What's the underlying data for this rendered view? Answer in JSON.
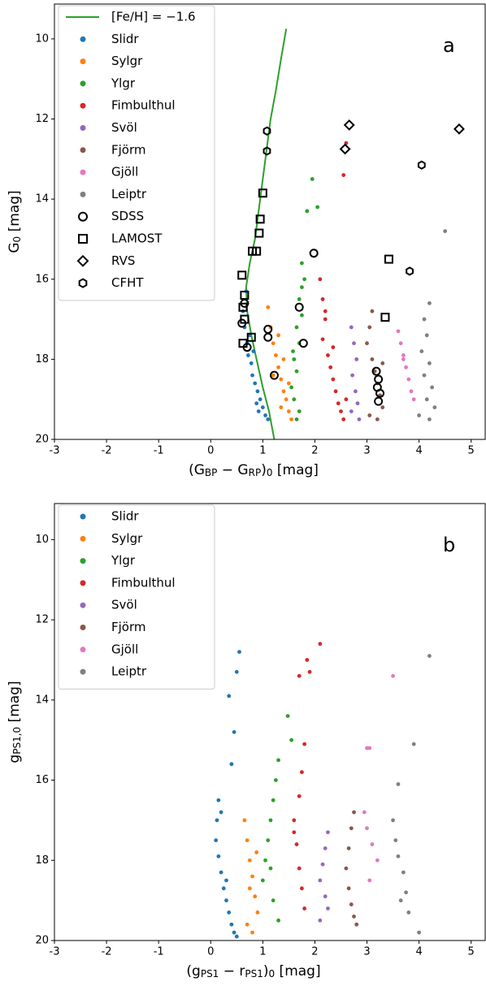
{
  "chart_data": [
    {
      "type": "scatter",
      "panel_label": "a",
      "xlabel": [
        "(G",
        "BP",
        " − G",
        "RP",
        ")",
        "0",
        " [mag]"
      ],
      "ylabel": [
        "G",
        "0",
        " [mag]"
      ],
      "xlim": [
        -3,
        5.27
      ],
      "ylim": [
        20,
        9.13
      ],
      "xticks": [
        -3,
        -2,
        -1,
        0,
        1,
        2,
        3,
        4,
        5
      ],
      "yticks": [
        10,
        12,
        14,
        16,
        18,
        20
      ],
      "legend": "upper left",
      "series": [
        {
          "name": "[Fe/H] = −1.6",
          "color": "#2ca02c",
          "marker": "line",
          "x": [
            1.45,
            1.35,
            1.25,
            1.15,
            1.05,
            0.95,
            0.85,
            0.75,
            0.68,
            0.7,
            0.78,
            0.88,
            1.0,
            1.12,
            1.22
          ],
          "values": [
            9.75,
            10.5,
            11.3,
            12,
            13,
            14,
            15,
            15.6,
            16.2,
            16.8,
            17.4,
            18,
            18.7,
            19.3,
            20
          ]
        },
        {
          "name": "Slidr",
          "color": "#1f77b4",
          "marker": "dot",
          "x": [
            0.62,
            0.65,
            0.68,
            0.7,
            0.72,
            0.75,
            0.78,
            0.8,
            0.85,
            0.88,
            0.9,
            0.95,
            1.0,
            1.05,
            1.1,
            0.82,
            0.92
          ],
          "values": [
            16.8,
            17.2,
            16.3,
            17.6,
            17.9,
            17.4,
            18.1,
            18.4,
            18.6,
            19.1,
            18.8,
            19.0,
            19.2,
            19.4,
            19.5,
            17.8,
            19.3
          ]
        },
        {
          "name": "Sylgr",
          "color": "#ff7f0e",
          "marker": "dot",
          "x": [
            1.1,
            1.15,
            1.2,
            1.25,
            1.3,
            1.35,
            1.4,
            1.45,
            1.5,
            1.55,
            1.3,
            1.4,
            1.2,
            1.35,
            1.5
          ],
          "values": [
            16.7,
            17.2,
            17.6,
            17.9,
            18.2,
            18.5,
            18.8,
            19.0,
            19.3,
            19.5,
            17.4,
            18.0,
            18.4,
            19.2,
            18.6
          ]
        },
        {
          "name": "Ylgr",
          "color": "#2ca02c",
          "marker": "dot",
          "x": [
            1.85,
            1.95,
            2.05,
            1.75,
            1.8,
            1.7,
            1.75,
            1.65,
            1.7,
            1.6,
            1.65,
            1.55,
            1.6,
            1.7,
            1.65,
            1.58,
            1.75
          ],
          "values": [
            14.3,
            13.5,
            14.2,
            15.6,
            16.0,
            16.5,
            16.9,
            17.2,
            17.6,
            18.0,
            18.3,
            18.7,
            19.0,
            19.3,
            19.5,
            17.8,
            16.2
          ]
        },
        {
          "name": "Fimbulthul",
          "color": "#d62728",
          "marker": "dot",
          "x": [
            2.55,
            2.6,
            2.1,
            2.15,
            2.2,
            2.15,
            2.25,
            2.3,
            2.35,
            2.4,
            2.45,
            2.5,
            2.55,
            2.2,
            2.35,
            2.6
          ],
          "values": [
            13.4,
            12.6,
            16.0,
            16.5,
            17.0,
            17.5,
            17.9,
            18.2,
            18.5,
            18.8,
            19.1,
            19.3,
            19.5,
            16.8,
            17.7,
            19.0
          ]
        },
        {
          "name": "Svöl",
          "color": "#9467bd",
          "marker": "dot",
          "x": [
            2.7,
            2.75,
            2.8,
            2.72,
            2.78,
            2.82,
            2.7,
            2.85
          ],
          "values": [
            17.2,
            17.6,
            18.0,
            18.4,
            18.8,
            19.1,
            19.3,
            19.5
          ]
        },
        {
          "name": "Fjörm",
          "color": "#8c564b",
          "marker": "dot",
          "x": [
            3.1,
            3.05,
            3.0,
            3.1,
            3.15,
            3.2,
            3.25,
            3.3,
            3.05,
            3.2,
            3.3
          ],
          "values": [
            16.8,
            17.2,
            17.6,
            18.0,
            18.3,
            18.6,
            18.9,
            19.2,
            19.4,
            19.5,
            18.1
          ]
        },
        {
          "name": "Gjöll",
          "color": "#e377c2",
          "marker": "dot",
          "x": [
            3.6,
            3.65,
            3.7,
            3.75,
            3.8,
            3.85,
            3.9,
            3.7
          ],
          "values": [
            17.3,
            17.6,
            17.9,
            18.2,
            18.5,
            18.8,
            19.0,
            18.0
          ]
        },
        {
          "name": "Leiptr",
          "color": "#7f7f7f",
          "marker": "dot",
          "x": [
            4.5,
            4.2,
            4.1,
            4.15,
            4.05,
            4.2,
            4.1,
            4.25,
            4.15,
            4.3,
            4.0,
            4.2
          ],
          "values": [
            14.8,
            16.6,
            17.0,
            17.4,
            17.8,
            18.1,
            18.4,
            18.7,
            19.0,
            19.2,
            19.4,
            19.5
          ]
        },
        {
          "name": "SDSS",
          "color": "#000000",
          "marker": "circle",
          "x": [
            1.1,
            1.1,
            1.22,
            1.7,
            1.78,
            1.98,
            3.18,
            3.22,
            3.2,
            3.25,
            3.22,
            0.6,
            0.65,
            0.7
          ],
          "values": [
            17.25,
            17.45,
            18.4,
            16.7,
            17.6,
            15.35,
            18.3,
            18.5,
            18.7,
            18.85,
            19.05,
            17.1,
            16.6,
            17.7
          ]
        },
        {
          "name": "LAMOST",
          "color": "#000000",
          "marker": "square",
          "x": [
            0.6,
            0.62,
            0.65,
            0.78,
            0.8,
            0.88,
            0.93,
            0.95,
            1.0,
            0.65,
            0.62,
            3.35,
            3.42
          ],
          "values": [
            15.9,
            16.7,
            16.4,
            17.45,
            15.3,
            15.3,
            14.85,
            14.5,
            13.85,
            17.0,
            17.6,
            16.95,
            15.5
          ]
        },
        {
          "name": "RVS",
          "color": "#000000",
          "marker": "diamond",
          "x": [
            2.66,
            2.58,
            4.77
          ],
          "values": [
            12.15,
            12.75,
            12.25
          ]
        },
        {
          "name": "CFHT",
          "color": "#000000",
          "marker": "hexagon",
          "x": [
            1.08,
            1.08,
            3.82,
            4.05
          ],
          "values": [
            12.3,
            12.8,
            15.8,
            13.15
          ]
        }
      ]
    },
    {
      "type": "scatter",
      "panel_label": "b",
      "xlabel": [
        "(g",
        "PS1",
        " − r",
        "PS1",
        ")",
        "0",
        " [mag]"
      ],
      "ylabel": [
        "g",
        "PS1,0",
        " [mag]"
      ],
      "xlim": [
        -3,
        5.27
      ],
      "ylim": [
        20,
        9.1
      ],
      "xticks": [
        -3,
        -2,
        -1,
        0,
        1,
        2,
        3,
        4,
        5
      ],
      "yticks": [
        10,
        12,
        14,
        16,
        18,
        20
      ],
      "legend": "upper left",
      "series": [
        {
          "name": "Slidr",
          "color": "#1f77b4",
          "marker": "dot",
          "x": [
            0.55,
            0.5,
            0.35,
            0.45,
            0.4,
            0.15,
            0.12,
            0.1,
            0.15,
            0.2,
            0.25,
            0.3,
            0.35,
            0.4,
            0.45,
            0.5,
            0.3,
            0.2
          ],
          "values": [
            12.8,
            13.3,
            13.9,
            14.8,
            15.6,
            16.5,
            17.0,
            17.5,
            17.9,
            18.3,
            18.7,
            19.0,
            19.3,
            19.6,
            19.8,
            19.9,
            18.5,
            16.8
          ]
        },
        {
          "name": "Sylgr",
          "color": "#ff7f0e",
          "marker": "dot",
          "x": [
            0.65,
            0.7,
            0.75,
            0.8,
            0.85,
            0.9,
            0.7,
            0.8,
            0.75,
            0.88
          ],
          "values": [
            17.0,
            17.5,
            18.0,
            18.4,
            18.9,
            19.3,
            19.6,
            19.8,
            18.7,
            17.8
          ]
        },
        {
          "name": "Ylgr",
          "color": "#2ca02c",
          "marker": "dot",
          "x": [
            1.48,
            1.55,
            1.3,
            1.25,
            1.2,
            1.15,
            1.1,
            1.05,
            1.0,
            1.2,
            1.3,
            1.15
          ],
          "values": [
            14.4,
            15.0,
            15.5,
            16.0,
            16.5,
            17.0,
            17.5,
            18.0,
            18.5,
            19.0,
            19.5,
            18.2
          ]
        },
        {
          "name": "Fimbulthul",
          "color": "#d62728",
          "marker": "dot",
          "x": [
            1.85,
            2.1,
            1.9,
            1.7,
            1.8,
            1.75,
            1.7,
            1.6,
            1.65,
            1.7,
            1.75,
            1.8,
            1.6
          ],
          "values": [
            13.0,
            12.6,
            13.3,
            13.4,
            15.1,
            15.8,
            16.4,
            17.0,
            17.6,
            18.2,
            18.7,
            19.2,
            17.3
          ]
        },
        {
          "name": "Svöl",
          "color": "#9467bd",
          "marker": "dot",
          "x": [
            2.25,
            2.2,
            2.15,
            2.1,
            2.2,
            2.25,
            2.1
          ],
          "values": [
            17.3,
            17.7,
            18.1,
            18.5,
            18.9,
            19.2,
            19.5
          ]
        },
        {
          "name": "Fjörm",
          "color": "#8c564b",
          "marker": "dot",
          "x": [
            2.75,
            2.7,
            2.65,
            2.6,
            2.65,
            2.7,
            2.75,
            2.8
          ],
          "values": [
            16.8,
            17.2,
            17.7,
            18.2,
            18.7,
            19.1,
            19.4,
            19.6
          ]
        },
        {
          "name": "Gjöll",
          "color": "#e377c2",
          "marker": "dot",
          "x": [
            3.0,
            3.05,
            3.5,
            2.95,
            3.0,
            3.1,
            3.2,
            3.05
          ],
          "values": [
            15.2,
            15.2,
            13.4,
            16.8,
            17.2,
            17.6,
            18.0,
            18.5
          ]
        },
        {
          "name": "Leiptr",
          "color": "#7f7f7f",
          "marker": "dot",
          "x": [
            4.2,
            3.9,
            3.6,
            3.5,
            3.55,
            3.6,
            3.7,
            3.75,
            3.8,
            3.65,
            4.0
          ],
          "values": [
            12.9,
            15.1,
            16.1,
            17.0,
            17.5,
            17.9,
            18.3,
            18.8,
            19.3,
            19.0,
            19.8
          ]
        }
      ]
    }
  ]
}
